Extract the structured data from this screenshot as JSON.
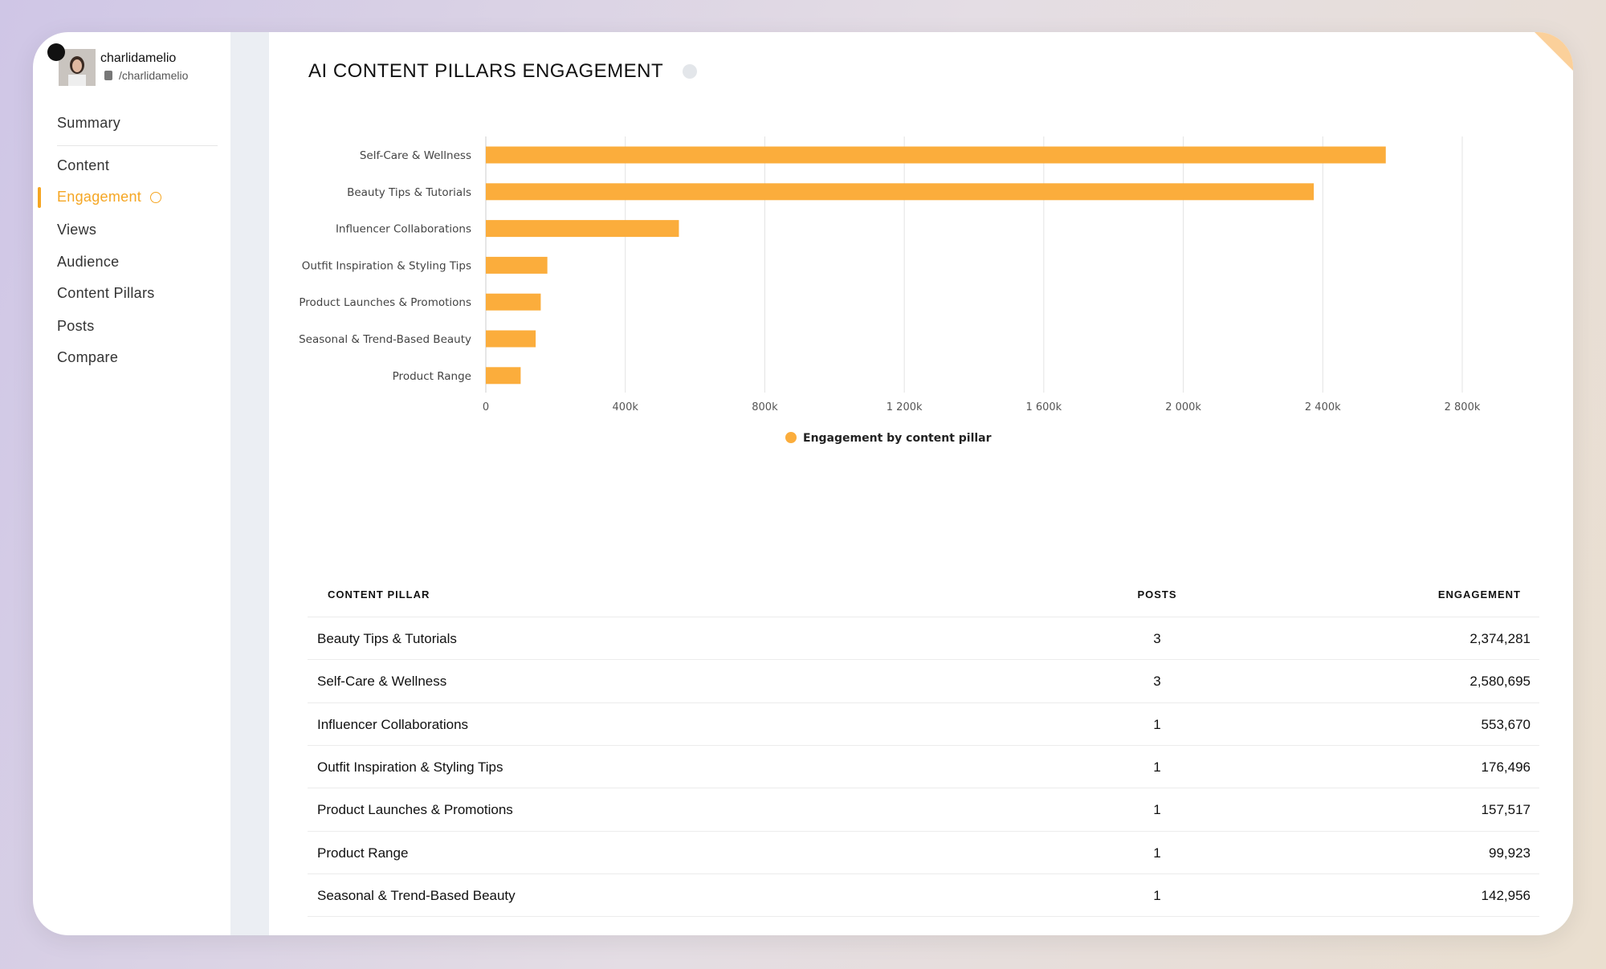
{
  "profile": {
    "name": "charlidamelio",
    "handle": "/charlidamelio"
  },
  "nav": [
    "Summary",
    "Content",
    "Engagement",
    "Views",
    "Audience",
    "Content Pillars",
    "Posts",
    "Compare"
  ],
  "active_nav": 2,
  "chart_data": {
    "type": "hbar",
    "title": "AI CONTENT PILLARS ENGAGEMENT",
    "categories": [
      "Self-Care & Wellness",
      "Beauty Tips & Tutorials",
      "Influencer Collaborations",
      "Outfit Inspiration & Styling Tips",
      "Product Launches & Promotions",
      "Seasonal & Trend-Based Beauty",
      "Product Range"
    ],
    "series": [
      {
        "name": "Engagement by content pillar",
        "color": "#fbad3c",
        "values": [
          2580695,
          2374281,
          553670,
          176496,
          157517,
          142956,
          99923
        ]
      }
    ],
    "xlim": [
      0,
      2800000
    ],
    "xticks": [
      0,
      {
        "value": 400000,
        "label": "400k"
      },
      {
        "value": 800000,
        "label": "800k"
      },
      {
        "value": 1200000,
        "label": "1 200k"
      },
      {
        "value": 1600000,
        "label": "1 600k"
      },
      {
        "value": 2000000,
        "label": "2 000k"
      },
      {
        "value": 2400000,
        "label": "2 400k"
      },
      {
        "value": 2800000,
        "label": "2 800k"
      }
    ],
    "grid": true,
    "legend": "bottom"
  },
  "table": {
    "columns": [
      "CONTENT PILLAR",
      "POSTS",
      "ENGAGEMENT"
    ],
    "rows": [
      [
        "Beauty Tips & Tutorials",
        "3",
        "2,374,281"
      ],
      [
        "Self-Care & Wellness",
        "3",
        "2,580,695"
      ],
      [
        "Influencer Collaborations",
        "1",
        "553,670"
      ],
      [
        "Outfit Inspiration & Styling Tips",
        "1",
        "176,496"
      ],
      [
        "Product Launches & Promotions",
        "1",
        "157,517"
      ],
      [
        "Product Range",
        "1",
        "99,923"
      ],
      [
        "Seasonal & Trend-Based Beauty",
        "1",
        "142,956"
      ]
    ]
  }
}
